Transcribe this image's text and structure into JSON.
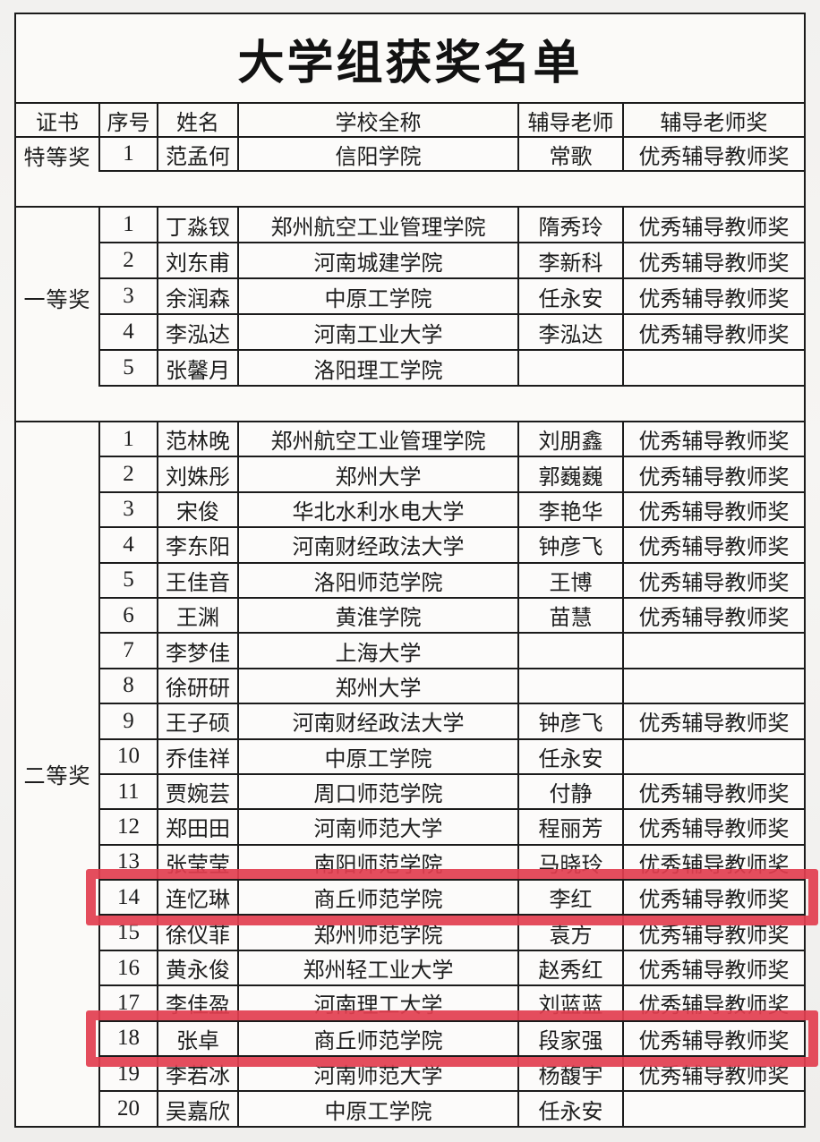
{
  "title": "大学组获奖名单",
  "columns": [
    "证书",
    "序号",
    "姓名",
    "学校全称",
    "辅导老师",
    "辅导老师奖"
  ],
  "highlight_color": "#e23e4f",
  "sections": [
    {
      "certificate": "特等奖",
      "rows": [
        {
          "no": "1",
          "name": "范孟何",
          "school": "信阳学院",
          "tutor": "常歌",
          "tutor_award": "优秀辅导教师奖",
          "highlighted": false
        }
      ]
    },
    {
      "certificate": "一等奖",
      "rows": [
        {
          "no": "1",
          "name": "丁淼钗",
          "school": "郑州航空工业管理学院",
          "tutor": "隋秀玲",
          "tutor_award": "优秀辅导教师奖",
          "highlighted": false
        },
        {
          "no": "2",
          "name": "刘东甫",
          "school": "河南城建学院",
          "tutor": "李新科",
          "tutor_award": "优秀辅导教师奖",
          "highlighted": false
        },
        {
          "no": "3",
          "name": "余润森",
          "school": "中原工学院",
          "tutor": "任永安",
          "tutor_award": "优秀辅导教师奖",
          "highlighted": false
        },
        {
          "no": "4",
          "name": "李泓达",
          "school": "河南工业大学",
          "tutor": "李泓达",
          "tutor_award": "优秀辅导教师奖",
          "highlighted": false
        },
        {
          "no": "5",
          "name": "张馨月",
          "school": "洛阳理工学院",
          "tutor": "",
          "tutor_award": "",
          "highlighted": false
        }
      ]
    },
    {
      "certificate": "二等奖",
      "rows": [
        {
          "no": "1",
          "name": "范林晚",
          "school": "郑州航空工业管理学院",
          "tutor": "刘朋鑫",
          "tutor_award": "优秀辅导教师奖",
          "highlighted": false
        },
        {
          "no": "2",
          "name": "刘姝彤",
          "school": "郑州大学",
          "tutor": "郭巍巍",
          "tutor_award": "优秀辅导教师奖",
          "highlighted": false
        },
        {
          "no": "3",
          "name": "宋俊",
          "school": "华北水利水电大学",
          "tutor": "李艳华",
          "tutor_award": "优秀辅导教师奖",
          "highlighted": false
        },
        {
          "no": "4",
          "name": "李东阳",
          "school": "河南财经政法大学",
          "tutor": "钟彦飞",
          "tutor_award": "优秀辅导教师奖",
          "highlighted": false
        },
        {
          "no": "5",
          "name": "王佳音",
          "school": "洛阳师范学院",
          "tutor": "王博",
          "tutor_award": "优秀辅导教师奖",
          "highlighted": false
        },
        {
          "no": "6",
          "name": "王渊",
          "school": "黄淮学院",
          "tutor": "苗慧",
          "tutor_award": "优秀辅导教师奖",
          "highlighted": false
        },
        {
          "no": "7",
          "name": "李梦佳",
          "school": "上海大学",
          "tutor": "",
          "tutor_award": "",
          "highlighted": false
        },
        {
          "no": "8",
          "name": "徐研研",
          "school": "郑州大学",
          "tutor": "",
          "tutor_award": "",
          "highlighted": false
        },
        {
          "no": "9",
          "name": "王子硕",
          "school": "河南财经政法大学",
          "tutor": "钟彦飞",
          "tutor_award": "优秀辅导教师奖",
          "highlighted": false
        },
        {
          "no": "10",
          "name": "乔佳祥",
          "school": "中原工学院",
          "tutor": "任永安",
          "tutor_award": "",
          "highlighted": false
        },
        {
          "no": "11",
          "name": "贾婉芸",
          "school": "周口师范学院",
          "tutor": "付静",
          "tutor_award": "优秀辅导教师奖",
          "highlighted": false
        },
        {
          "no": "12",
          "name": "郑田田",
          "school": "河南师范大学",
          "tutor": "程丽芳",
          "tutor_award": "优秀辅导教师奖",
          "highlighted": false
        },
        {
          "no": "13",
          "name": "张莹莹",
          "school": "南阳师范学院",
          "tutor": "马晓玲",
          "tutor_award": "优秀辅导教师奖",
          "highlighted": false
        },
        {
          "no": "14",
          "name": "连忆琳",
          "school": "商丘师范学院",
          "tutor": "李红",
          "tutor_award": "优秀辅导教师奖",
          "highlighted": true
        },
        {
          "no": "15",
          "name": "徐仪菲",
          "school": "郑州师范学院",
          "tutor": "袁方",
          "tutor_award": "优秀辅导教师奖",
          "highlighted": false
        },
        {
          "no": "16",
          "name": "黄永俊",
          "school": "郑州轻工业大学",
          "tutor": "赵秀红",
          "tutor_award": "优秀辅导教师奖",
          "highlighted": false
        },
        {
          "no": "17",
          "name": "李佳盈",
          "school": "河南理工大学",
          "tutor": "刘蓝蓝",
          "tutor_award": "优秀辅导教师奖",
          "highlighted": false
        },
        {
          "no": "18",
          "name": "张卓",
          "school": "商丘师范学院",
          "tutor": "段家强",
          "tutor_award": "优秀辅导教师奖",
          "highlighted": true
        },
        {
          "no": "19",
          "name": "李若冰",
          "school": "河南师范大学",
          "tutor": "杨馥宇",
          "tutor_award": "优秀辅导教师奖",
          "highlighted": false
        },
        {
          "no": "20",
          "name": "吴嘉欣",
          "school": "中原工学院",
          "tutor": "任永安",
          "tutor_award": "",
          "highlighted": false
        }
      ]
    }
  ]
}
